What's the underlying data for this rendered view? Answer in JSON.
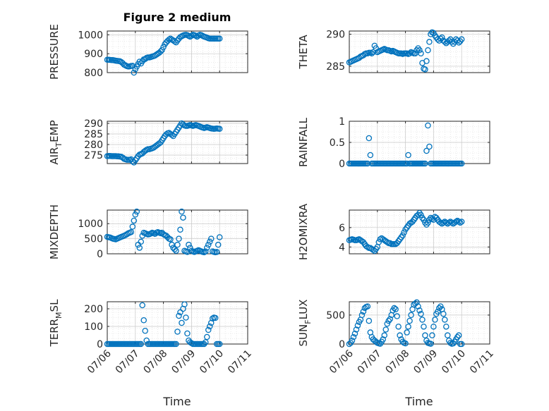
{
  "figure": {
    "title": "Figure 2 medium",
    "marker_color": "#0072bd"
  },
  "chart_data": [
    {
      "type": "scatter",
      "ylabel": "PRESSURE",
      "ylim": [
        800,
        1020
      ],
      "yticks": [
        800,
        900,
        1000
      ],
      "xlim": [
        0,
        5
      ],
      "grid": true,
      "x": [
        0.0,
        0.05,
        0.1,
        0.15,
        0.2,
        0.25,
        0.3,
        0.35,
        0.4,
        0.45,
        0.5,
        0.55,
        0.6,
        0.65,
        0.7,
        0.75,
        0.8,
        0.85,
        0.9,
        0.95,
        1.0,
        1.05,
        1.1,
        1.15,
        1.2,
        1.25,
        1.3,
        1.35,
        1.4,
        1.45,
        1.5,
        1.55,
        1.6,
        1.65,
        1.7,
        1.75,
        1.8,
        1.85,
        1.9,
        1.95,
        2.0,
        2.05,
        2.1,
        2.15,
        2.2,
        2.25,
        2.3,
        2.35,
        2.4,
        2.45,
        2.5,
        2.55,
        2.6,
        2.65,
        2.7,
        2.75,
        2.8,
        2.85,
        2.9,
        2.95,
        3.0,
        3.05,
        3.1,
        3.15,
        3.2,
        3.25,
        3.3,
        3.35,
        3.4,
        3.45,
        3.5,
        3.55,
        3.6,
        3.65,
        3.7,
        3.75,
        3.8,
        3.85,
        3.9,
        3.95,
        4.0
      ],
      "y": [
        868,
        868,
        867,
        866,
        866,
        865,
        863,
        862,
        861,
        860,
        856,
        850,
        842,
        838,
        834,
        832,
        833,
        835,
        836,
        800,
        818,
        832,
        845,
        858,
        848,
        860,
        870,
        872,
        878,
        880,
        880,
        882,
        885,
        887,
        890,
        895,
        900,
        905,
        912,
        920,
        935,
        950,
        960,
        968,
        975,
        980,
        975,
        970,
        965,
        960,
        970,
        980,
        988,
        992,
        996,
        999,
        1000,
        998,
        994,
        990,
        995,
        1000,
        998,
        995,
        990,
        996,
        1000,
        998,
        994,
        990,
        988,
        985,
        982,
        980,
        980,
        980,
        980,
        980,
        980,
        980,
        980
      ]
    },
    {
      "type": "scatter",
      "ylabel": "THETA",
      "ylim": [
        284,
        290.5
      ],
      "yticks": [
        285,
        290
      ],
      "xlim": [
        0,
        5
      ],
      "grid": true,
      "x": [
        0.0,
        0.05,
        0.1,
        0.15,
        0.2,
        0.25,
        0.3,
        0.35,
        0.4,
        0.45,
        0.5,
        0.55,
        0.6,
        0.65,
        0.7,
        0.75,
        0.8,
        0.85,
        0.9,
        0.95,
        1.0,
        1.05,
        1.1,
        1.15,
        1.2,
        1.25,
        1.3,
        1.35,
        1.4,
        1.45,
        1.5,
        1.55,
        1.6,
        1.65,
        1.7,
        1.75,
        1.8,
        1.85,
        1.9,
        1.95,
        2.0,
        2.05,
        2.1,
        2.15,
        2.2,
        2.25,
        2.3,
        2.35,
        2.4,
        2.45,
        2.5,
        2.55,
        2.6,
        2.65,
        2.7,
        2.75,
        2.8,
        2.85,
        2.9,
        2.95,
        3.0,
        3.05,
        3.1,
        3.15,
        3.2,
        3.25,
        3.3,
        3.35,
        3.4,
        3.45,
        3.5,
        3.55,
        3.6,
        3.65,
        3.7,
        3.75,
        3.8,
        3.85,
        3.9,
        3.95,
        4.0
      ],
      "y": [
        285.6,
        285.7,
        285.8,
        285.9,
        286.0,
        286.1,
        286.2,
        286.3,
        286.5,
        286.6,
        286.7,
        286.9,
        287.0,
        287.0,
        287.1,
        287.1,
        287.0,
        287.2,
        288.2,
        287.8,
        287.2,
        287.3,
        287.4,
        287.5,
        287.6,
        287.7,
        287.6,
        287.5,
        287.5,
        287.4,
        287.3,
        287.4,
        287.3,
        287.2,
        287.1,
        287.0,
        287.0,
        287.0,
        286.9,
        287.0,
        287.0,
        287.0,
        286.9,
        287.0,
        287.2,
        287.1,
        287.0,
        287.0,
        287.5,
        287.8,
        287.5,
        287.0,
        285.5,
        284.6,
        284.5,
        285.8,
        287.5,
        288.8,
        290.0,
        290.3,
        290.2,
        289.8,
        289.5,
        289.2,
        289.0,
        289.3,
        289.5,
        289.0,
        288.8,
        288.6,
        288.8,
        289.0,
        289.2,
        288.8,
        288.5,
        288.8,
        289.2,
        289.0,
        288.7,
        288.9,
        289.2
      ]
    },
    {
      "type": "scatter",
      "ylabel": "AIR_TEMP",
      "ylim": [
        271,
        291
      ],
      "yticks": [
        275,
        280,
        285,
        290
      ],
      "xlim": [
        0,
        5
      ],
      "grid": true,
      "x": [
        0.0,
        0.05,
        0.1,
        0.15,
        0.2,
        0.25,
        0.3,
        0.35,
        0.4,
        0.45,
        0.5,
        0.55,
        0.6,
        0.65,
        0.7,
        0.75,
        0.8,
        0.85,
        0.9,
        0.95,
        1.0,
        1.05,
        1.1,
        1.15,
        1.2,
        1.25,
        1.3,
        1.35,
        1.4,
        1.45,
        1.5,
        1.55,
        1.6,
        1.65,
        1.7,
        1.75,
        1.8,
        1.85,
        1.9,
        1.95,
        2.0,
        2.05,
        2.1,
        2.15,
        2.2,
        2.25,
        2.3,
        2.35,
        2.4,
        2.45,
        2.5,
        2.55,
        2.6,
        2.65,
        2.7,
        2.75,
        2.8,
        2.85,
        2.9,
        2.95,
        3.0,
        3.05,
        3.1,
        3.15,
        3.2,
        3.25,
        3.3,
        3.35,
        3.4,
        3.45,
        3.5,
        3.55,
        3.6,
        3.65,
        3.7,
        3.75,
        3.8,
        3.85,
        3.9,
        3.95,
        4.0
      ],
      "y": [
        274.5,
        274.6,
        274.6,
        274.5,
        274.5,
        274.5,
        274.5,
        274.4,
        274.4,
        274.3,
        274.2,
        273.8,
        273.2,
        273.0,
        272.8,
        272.8,
        272.8,
        273.0,
        272.0,
        271.5,
        272.6,
        273.5,
        274.5,
        275.2,
        275.5,
        275.8,
        276.5,
        277.0,
        277.5,
        277.8,
        277.8,
        278.0,
        278.2,
        278.5,
        279.0,
        279.5,
        280.0,
        280.5,
        281.0,
        282.0,
        283.0,
        284.0,
        284.8,
        285.3,
        285.5,
        285.0,
        284.5,
        284.0,
        285.0,
        286.0,
        287.0,
        288.0,
        289.0,
        290.0,
        289.5,
        289.0,
        288.8,
        288.8,
        289.0,
        289.2,
        289.0,
        288.8,
        289.0,
        289.2,
        289.0,
        288.8,
        288.5,
        288.2,
        288.0,
        287.8,
        288.0,
        288.2,
        288.0,
        287.8,
        287.6,
        287.5,
        287.4,
        287.5,
        287.6,
        287.5,
        287.4
      ]
    },
    {
      "type": "scatter",
      "ylabel": "RAINFALL",
      "ylim": [
        0,
        1
      ],
      "yticks": [
        0,
        0.5,
        1
      ],
      "xlim": [
        0,
        5
      ],
      "grid": true,
      "x": [
        0.0,
        0.05,
        0.1,
        0.15,
        0.2,
        0.25,
        0.3,
        0.35,
        0.4,
        0.45,
        0.5,
        0.55,
        0.6,
        0.65,
        0.7,
        0.75,
        0.8,
        0.85,
        0.9,
        0.95,
        1.0,
        1.05,
        1.1,
        1.15,
        1.2,
        1.25,
        1.3,
        1.35,
        1.4,
        1.45,
        1.5,
        1.55,
        1.6,
        1.65,
        1.7,
        1.75,
        1.8,
        1.85,
        1.9,
        1.95,
        2.0,
        2.05,
        2.1,
        2.15,
        2.2,
        2.25,
        2.3,
        2.35,
        2.4,
        2.45,
        2.5,
        2.55,
        2.6,
        2.65,
        2.7,
        2.75,
        2.8,
        2.85,
        2.9,
        2.95,
        3.0,
        3.05,
        3.1,
        3.15,
        3.2,
        3.25,
        3.3,
        3.35,
        3.4,
        3.45,
        3.5,
        3.55,
        3.6,
        3.65,
        3.7,
        3.75,
        3.8,
        3.85,
        3.9,
        3.95,
        4.0
      ],
      "y": [
        0,
        0,
        0,
        0,
        0,
        0,
        0,
        0,
        0,
        0,
        0,
        0,
        0,
        0,
        0.6,
        0.2,
        0,
        0,
        0,
        0,
        0,
        0,
        0,
        0,
        0,
        0,
        0,
        0,
        0,
        0,
        0,
        0,
        0,
        0,
        0,
        0,
        0,
        0,
        0,
        0,
        0,
        0,
        0.2,
        0,
        0,
        0,
        0,
        0,
        0,
        0,
        0,
        0,
        0,
        0,
        0,
        0.3,
        0.9,
        0.4,
        0,
        0,
        0,
        0,
        0,
        0,
        0,
        0,
        0,
        0,
        0,
        0,
        0,
        0,
        0,
        0,
        0,
        0,
        0,
        0,
        0,
        0,
        0
      ]
    },
    {
      "type": "scatter",
      "ylabel": "MIXDEPTH",
      "ylim": [
        0,
        1450
      ],
      "yticks": [
        0,
        500,
        1000
      ],
      "xlim": [
        0,
        5
      ],
      "grid": true,
      "x": [
        0.0,
        0.05,
        0.1,
        0.15,
        0.2,
        0.25,
        0.3,
        0.35,
        0.4,
        0.45,
        0.5,
        0.55,
        0.6,
        0.65,
        0.7,
        0.75,
        0.8,
        0.85,
        0.9,
        0.95,
        1.0,
        1.05,
        1.1,
        1.15,
        1.2,
        1.25,
        1.3,
        1.35,
        1.4,
        1.45,
        1.5,
        1.55,
        1.6,
        1.65,
        1.7,
        1.75,
        1.8,
        1.85,
        1.9,
        1.95,
        2.0,
        2.05,
        2.1,
        2.15,
        2.2,
        2.25,
        2.3,
        2.35,
        2.4,
        2.45,
        2.5,
        2.55,
        2.6,
        2.65,
        2.7,
        2.75,
        2.8,
        2.85,
        2.9,
        2.95,
        3.0,
        3.05,
        3.1,
        3.15,
        3.2,
        3.25,
        3.3,
        3.35,
        3.4,
        3.45,
        3.5,
        3.55,
        3.6,
        3.65,
        3.7,
        3.75,
        3.8,
        3.85,
        3.9,
        3.95,
        4.0
      ],
      "y": [
        560,
        550,
        540,
        520,
        500,
        490,
        480,
        500,
        520,
        540,
        560,
        580,
        600,
        620,
        650,
        680,
        700,
        720,
        900,
        1100,
        1300,
        1400,
        300,
        200,
        400,
        600,
        700,
        680,
        660,
        640,
        650,
        670,
        700,
        680,
        660,
        700,
        720,
        700,
        680,
        700,
        650,
        620,
        600,
        550,
        500,
        480,
        300,
        200,
        150,
        100,
        300,
        500,
        800,
        1400,
        1200,
        100,
        80,
        60,
        300,
        200,
        100,
        80,
        60,
        80,
        100,
        120,
        100,
        80,
        60,
        50,
        80,
        200,
        300,
        400,
        500,
        80,
        60,
        50,
        60,
        300,
        550
      ]
    },
    {
      "type": "scatter",
      "ylabel": "H2OMIXRA",
      "ylim": [
        3.3,
        7.8
      ],
      "yticks": [
        4,
        6
      ],
      "xlim": [
        0,
        5
      ],
      "grid": true,
      "x": [
        0.0,
        0.05,
        0.1,
        0.15,
        0.2,
        0.25,
        0.3,
        0.35,
        0.4,
        0.45,
        0.5,
        0.55,
        0.6,
        0.65,
        0.7,
        0.75,
        0.8,
        0.85,
        0.9,
        0.95,
        1.0,
        1.05,
        1.1,
        1.15,
        1.2,
        1.25,
        1.3,
        1.35,
        1.4,
        1.45,
        1.5,
        1.55,
        1.6,
        1.65,
        1.7,
        1.75,
        1.8,
        1.85,
        1.9,
        1.95,
        2.0,
        2.05,
        2.1,
        2.15,
        2.2,
        2.25,
        2.3,
        2.35,
        2.4,
        2.45,
        2.5,
        2.55,
        2.6,
        2.65,
        2.7,
        2.75,
        2.8,
        2.85,
        2.9,
        2.95,
        3.0,
        3.05,
        3.1,
        3.15,
        3.2,
        3.25,
        3.3,
        3.35,
        3.4,
        3.45,
        3.5,
        3.55,
        3.6,
        3.65,
        3.7,
        3.75,
        3.8,
        3.85,
        3.9,
        3.95,
        4.0
      ],
      "y": [
        4.7,
        4.75,
        4.8,
        4.75,
        4.7,
        4.7,
        4.75,
        4.8,
        4.7,
        4.6,
        4.5,
        4.3,
        4.1,
        4.0,
        3.9,
        3.9,
        3.8,
        3.7,
        3.6,
        3.8,
        4.0,
        4.5,
        4.8,
        4.9,
        4.8,
        4.7,
        4.6,
        4.5,
        4.4,
        4.4,
        4.3,
        4.3,
        4.3,
        4.3,
        4.4,
        4.6,
        4.8,
        5.0,
        5.2,
        5.5,
        5.8,
        6.0,
        6.2,
        6.4,
        6.5,
        6.6,
        6.8,
        7.0,
        7.2,
        7.3,
        7.5,
        7.3,
        7.0,
        6.8,
        6.5,
        6.3,
        6.5,
        6.8,
        7.0,
        6.9,
        6.8,
        7.1,
        7.0,
        6.8,
        6.6,
        6.5,
        6.4,
        6.5,
        6.6,
        6.5,
        6.4,
        6.5,
        6.6,
        6.5,
        6.4,
        6.5,
        6.6,
        6.7,
        6.6,
        6.5,
        6.6
      ]
    },
    {
      "type": "scatter",
      "ylabel": "TERR_MSL",
      "ylim": [
        0,
        240
      ],
      "yticks": [
        0,
        100,
        200
      ],
      "xlim": [
        0,
        5
      ],
      "grid": true,
      "x": [
        0.0,
        0.05,
        0.1,
        0.15,
        0.2,
        0.25,
        0.3,
        0.35,
        0.4,
        0.45,
        0.5,
        0.55,
        0.6,
        0.65,
        0.7,
        0.75,
        0.8,
        0.85,
        0.9,
        0.95,
        1.0,
        1.05,
        1.1,
        1.15,
        1.2,
        1.25,
        1.3,
        1.35,
        1.4,
        1.45,
        1.5,
        1.55,
        1.6,
        1.65,
        1.7,
        1.75,
        1.8,
        1.85,
        1.9,
        1.95,
        2.0,
        2.05,
        2.1,
        2.15,
        2.2,
        2.25,
        2.3,
        2.35,
        2.4,
        2.45,
        2.5,
        2.55,
        2.6,
        2.65,
        2.7,
        2.75,
        2.8,
        2.85,
        2.9,
        2.95,
        3.0,
        3.05,
        3.1,
        3.15,
        3.2,
        3.25,
        3.3,
        3.35,
        3.4,
        3.45,
        3.5,
        3.55,
        3.6,
        3.65,
        3.7,
        3.75,
        3.8,
        3.85,
        3.9,
        3.95,
        4.0
      ],
      "y": [
        0,
        0,
        0,
        0,
        0,
        0,
        0,
        0,
        0,
        0,
        0,
        0,
        0,
        0,
        0,
        0,
        0,
        0,
        0,
        0,
        0,
        0,
        0,
        0,
        0,
        220,
        135,
        75,
        20,
        0,
        0,
        0,
        0,
        0,
        0,
        0,
        0,
        0,
        0,
        0,
        0,
        0,
        0,
        0,
        0,
        0,
        0,
        0,
        0,
        0,
        70,
        160,
        180,
        120,
        200,
        225,
        150,
        60,
        20,
        10,
        5,
        0,
        0,
        0,
        0,
        0,
        0,
        0,
        0,
        0,
        10,
        40,
        80,
        100,
        120,
        145,
        150,
        148,
        0,
        0,
        0
      ]
    },
    {
      "type": "scatter",
      "ylabel": "SUN_FLUX",
      "ylim": [
        0,
        730
      ],
      "yticks": [
        0,
        500
      ],
      "xlim": [
        0,
        5
      ],
      "grid": true,
      "x": [
        0.0,
        0.05,
        0.1,
        0.15,
        0.2,
        0.25,
        0.3,
        0.35,
        0.4,
        0.45,
        0.5,
        0.55,
        0.6,
        0.65,
        0.7,
        0.75,
        0.8,
        0.85,
        0.9,
        0.95,
        1.0,
        1.05,
        1.1,
        1.15,
        1.2,
        1.25,
        1.3,
        1.35,
        1.4,
        1.45,
        1.5,
        1.55,
        1.6,
        1.65,
        1.7,
        1.75,
        1.8,
        1.85,
        1.9,
        1.95,
        2.0,
        2.05,
        2.1,
        2.15,
        2.2,
        2.25,
        2.3,
        2.35,
        2.4,
        2.45,
        2.5,
        2.55,
        2.6,
        2.65,
        2.7,
        2.75,
        2.8,
        2.85,
        2.9,
        2.95,
        3.0,
        3.05,
        3.1,
        3.15,
        3.2,
        3.25,
        3.3,
        3.35,
        3.4,
        3.45,
        3.5,
        3.55,
        3.6,
        3.65,
        3.7,
        3.75,
        3.8,
        3.85,
        3.9,
        3.95,
        4.0
      ],
      "y": [
        0,
        20,
        60,
        120,
        180,
        250,
        320,
        380,
        420,
        500,
        560,
        620,
        640,
        650,
        400,
        200,
        120,
        80,
        60,
        40,
        20,
        10,
        5,
        40,
        80,
        150,
        250,
        350,
        400,
        430,
        500,
        580,
        620,
        600,
        480,
        300,
        150,
        80,
        40,
        20,
        10,
        200,
        300,
        400,
        500,
        600,
        680,
        700,
        720,
        650,
        580,
        520,
        420,
        300,
        150,
        60,
        20,
        10,
        5,
        150,
        300,
        420,
        520,
        560,
        620,
        650,
        600,
        520,
        420,
        300,
        150,
        60,
        20,
        5,
        10,
        40,
        80,
        120,
        150,
        0,
        0
      ]
    }
  ],
  "x_axis": {
    "ticks": [
      "07/06",
      "07/07",
      "07/08",
      "07/09",
      "07/10",
      "07/11"
    ],
    "label": "Time"
  }
}
